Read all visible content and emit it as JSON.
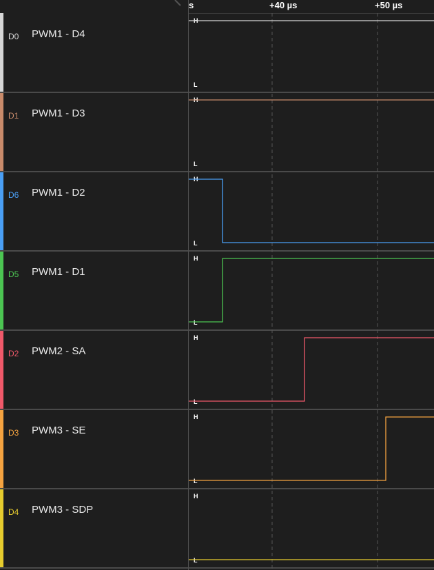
{
  "timeline": {
    "labels": [
      {
        "text": "s"
      },
      {
        "text": "+40 µs"
      },
      {
        "text": "+50 µs"
      }
    ]
  },
  "level_labels": {
    "high": "H",
    "low": "L"
  },
  "channels": [
    {
      "id": "D0",
      "name": "PWM1 - D4",
      "color": "#d6d6d6",
      "initial": "H",
      "final": "H"
    },
    {
      "id": "D1",
      "name": "PWM1 - D3",
      "color": "#c98b6b",
      "initial": "H",
      "final": "H"
    },
    {
      "id": "D6",
      "name": "PWM1 - D2",
      "color": "#4a9ff5",
      "initial": "H",
      "final": "L"
    },
    {
      "id": "D5",
      "name": "PWM1 - D1",
      "color": "#4cc552",
      "initial": "L",
      "final": "H"
    },
    {
      "id": "D2",
      "name": "PWM2 - SA",
      "color": "#f0596a",
      "initial": "L",
      "final": "H"
    },
    {
      "id": "D3",
      "name": "PWM3 - SE",
      "color": "#f5a340",
      "initial": "L",
      "final": "H"
    },
    {
      "id": "D4",
      "name": "PWM3 - SDP",
      "color": "#e6cc2e",
      "initial": "L",
      "final": "L"
    }
  ]
}
